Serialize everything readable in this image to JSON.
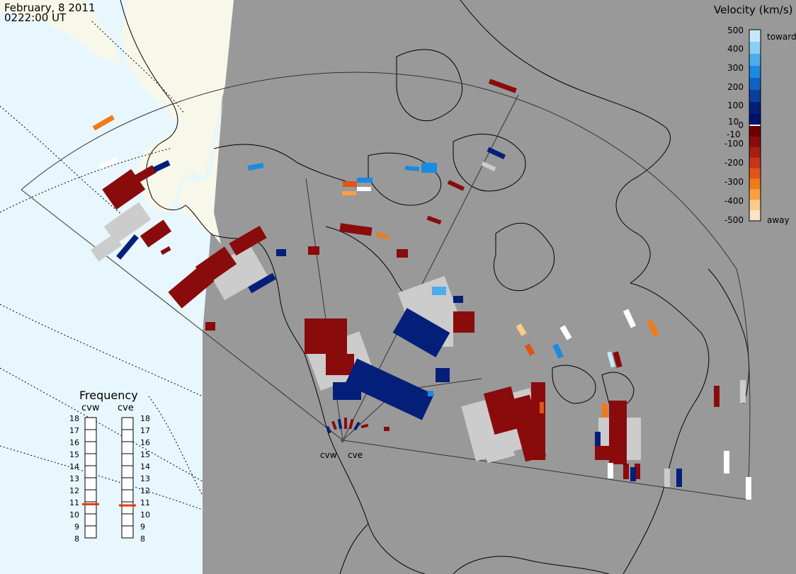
{
  "header": {
    "date": "February, 8 2011",
    "time": "0222:00 UT"
  },
  "colors": {
    "ocean": "#e8f6fd",
    "land_sunlit": "#f7f7ea",
    "land_night": "#999999",
    "coastline": "#000000",
    "ground_scatter": "#cccccc"
  },
  "velocity_scale": {
    "title": "Velocity (km/s)",
    "ticks": [
      "500",
      "400",
      "300",
      "200",
      "100",
      "10",
      "0",
      "-10",
      "-100",
      "-200",
      "-300",
      "-400",
      "-500"
    ],
    "toward_label": "toward",
    "away_label": "away",
    "colors_toward": [
      "#c8e8fa",
      "#8ccff5",
      "#4aaeeb",
      "#1a8be0",
      "#1262c4",
      "#0b3f9e",
      "#041f7a",
      "#00126a"
    ],
    "colors_away": [
      "#6e0000",
      "#8a0b0b",
      "#a81e12",
      "#c6351a",
      "#df5418",
      "#f07a1a",
      "#f9a040",
      "#fccb8a",
      "#fde3c6"
    ]
  },
  "frequency_panel": {
    "title": "Frequency",
    "radars": [
      "cvw",
      "cve"
    ],
    "scale": [
      "18",
      "17",
      "16",
      "15",
      "14",
      "13",
      "12",
      "11",
      "10",
      "9",
      "8"
    ],
    "cvw_value_mhz": 10.8,
    "cve_value_mhz": 10.7,
    "marker_color": "#e03a12"
  },
  "radar_sites": [
    "cvw",
    "cve"
  ]
}
